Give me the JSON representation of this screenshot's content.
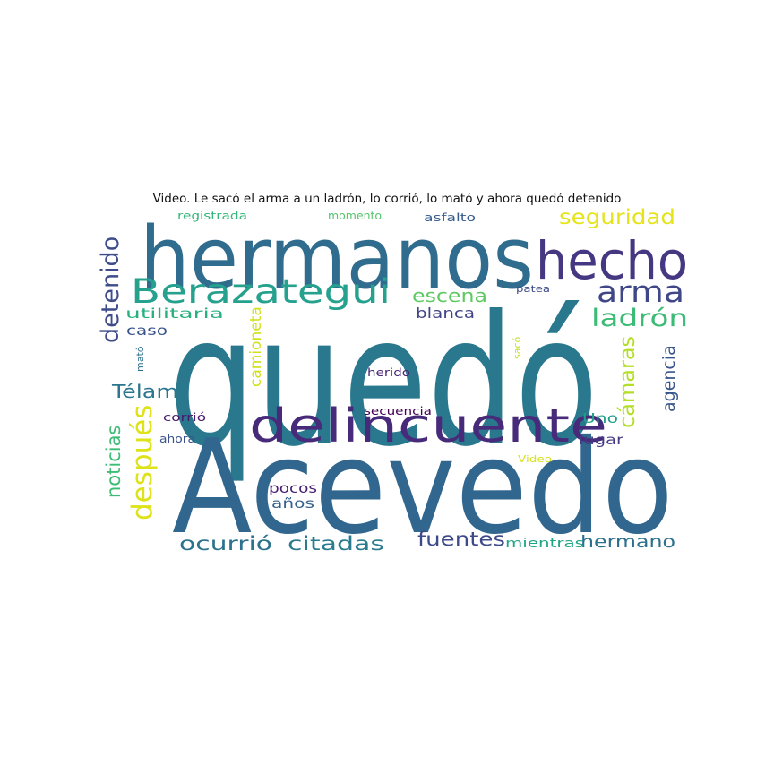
{
  "title": "Video. Le sacó el arma a un ladrón, lo corrió, lo mató y ahora quedó detenido",
  "words": [
    {
      "text": "quedó",
      "color": "#2a788e"
    },
    {
      "text": "Acevedo",
      "color": "#31668e"
    },
    {
      "text": "hermanos",
      "color": "#2f6c8e"
    },
    {
      "text": "hecho",
      "color": "#453781"
    },
    {
      "text": "delincuente",
      "color": "#472a7a"
    },
    {
      "text": "Berazategui",
      "color": "#25a18e"
    },
    {
      "text": "después",
      "color": "#dde318"
    },
    {
      "text": "arma",
      "color": "#3f4788"
    },
    {
      "text": "ladrón",
      "color": "#3bbb75"
    },
    {
      "text": "detenido",
      "color": "#3e4c8a"
    },
    {
      "text": "seguridad",
      "color": "#e5e419"
    },
    {
      "text": "cámaras",
      "color": "#b5de2b"
    },
    {
      "text": "noticias",
      "color": "#3dbc74"
    },
    {
      "text": "camioneta",
      "color": "#d0e11c"
    },
    {
      "text": "agencia",
      "color": "#39568c"
    },
    {
      "text": "escena",
      "color": "#5ec962"
    },
    {
      "text": "Télam",
      "color": "#2b758e"
    },
    {
      "text": "ocurrió",
      "color": "#2c718e"
    },
    {
      "text": "citadas",
      "color": "#2a7b8e"
    },
    {
      "text": "fuentes",
      "color": "#3e4989"
    },
    {
      "text": "hermano",
      "color": "#2d708e"
    },
    {
      "text": "blanca",
      "color": "#414487"
    },
    {
      "text": "utilitaria",
      "color": "#29af7f"
    },
    {
      "text": "caso",
      "color": "#3a538b"
    },
    {
      "text": "Uno",
      "color": "#1fa088"
    },
    {
      "text": "lugar",
      "color": "#453882"
    },
    {
      "text": "pocos",
      "color": "#481f70"
    },
    {
      "text": "años",
      "color": "#34618d"
    },
    {
      "text": "mientras",
      "color": "#20a486"
    },
    {
      "text": "registrada",
      "color": "#35b779"
    },
    {
      "text": "momento",
      "color": "#52c569"
    },
    {
      "text": "asfalto",
      "color": "#365c8d"
    },
    {
      "text": "patea",
      "color": "#3e4a89"
    },
    {
      "text": "herido",
      "color": "#482475"
    },
    {
      "text": "secuencia",
      "color": "#440154"
    },
    {
      "text": "corrió",
      "color": "#48186a"
    },
    {
      "text": "ahora",
      "color": "#3b528b"
    },
    {
      "text": "mató",
      "color": "#2d708e"
    },
    {
      "text": "sacó",
      "color": "#c2df23"
    },
    {
      "text": "Video",
      "color": "#d8e219"
    }
  ]
}
